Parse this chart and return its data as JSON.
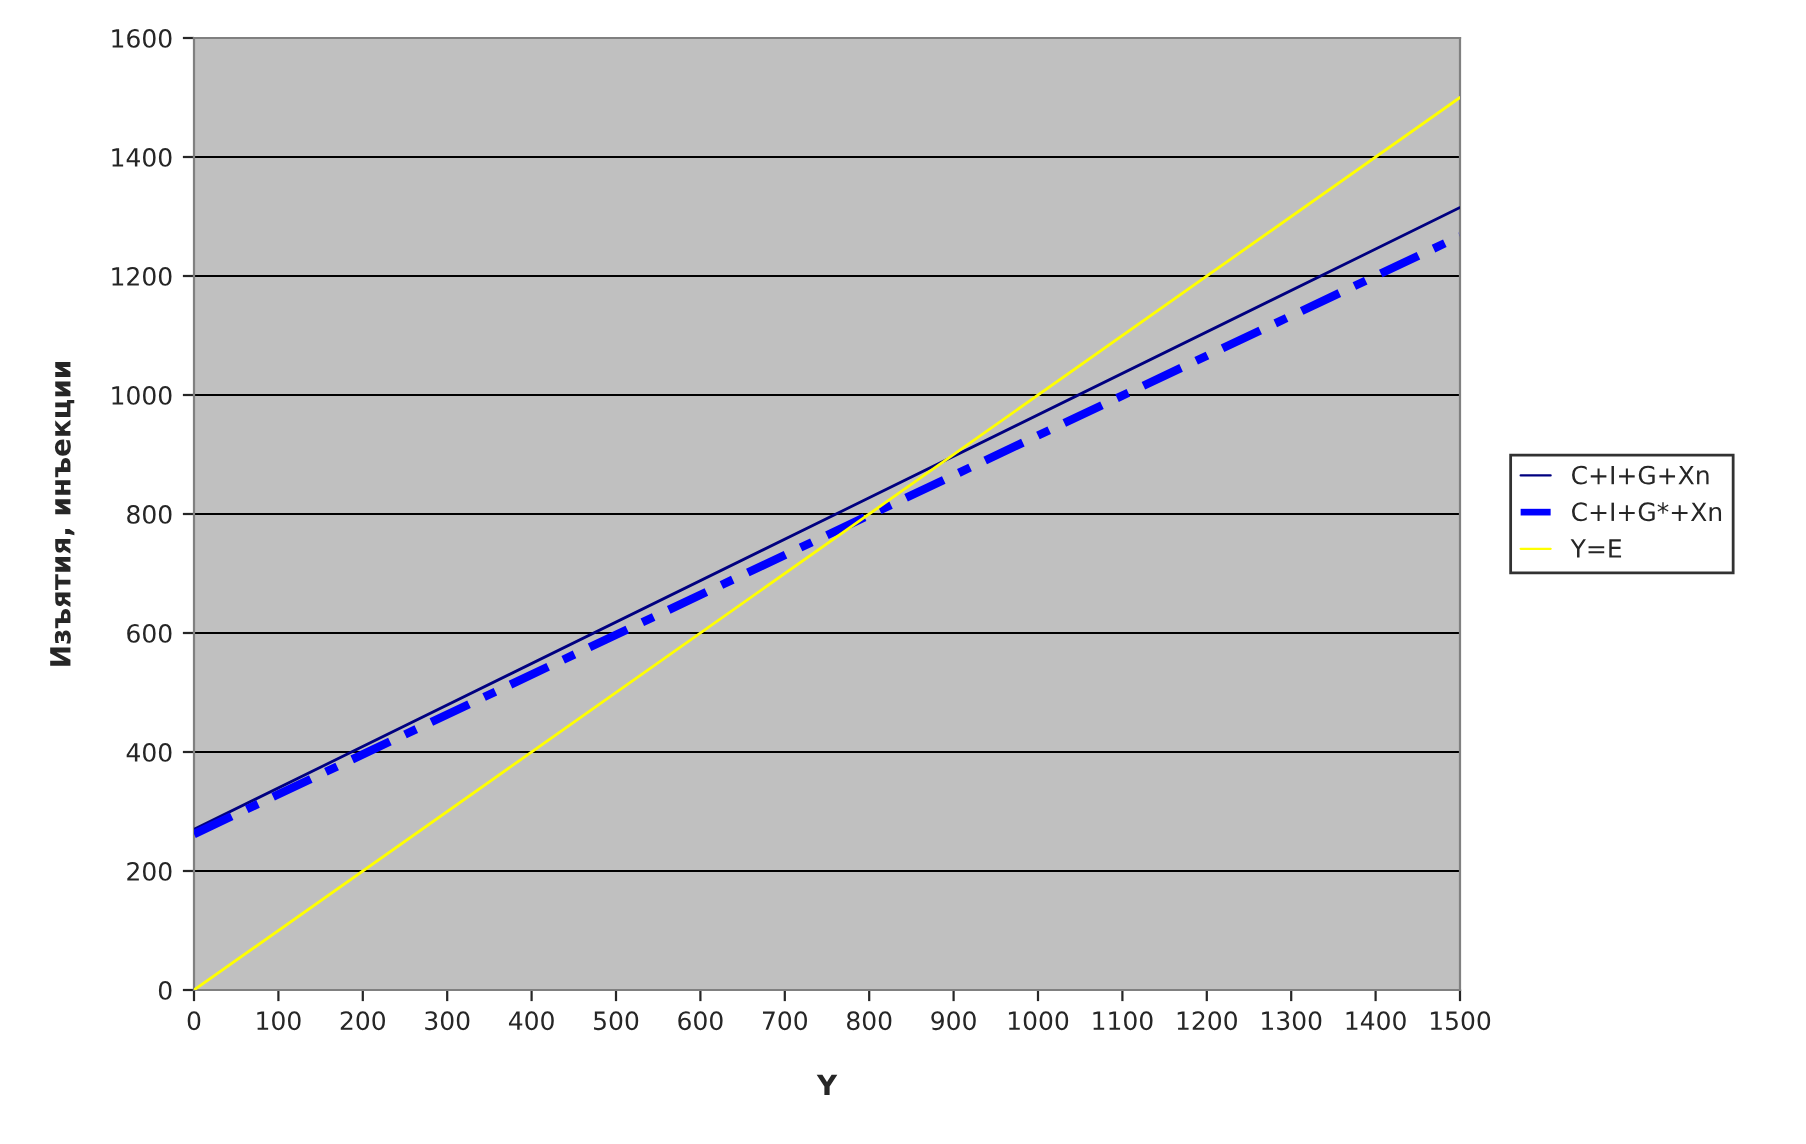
{
  "chart_data": {
    "type": "line",
    "xlabel": "Y",
    "ylabel": "Изъятия, инъекции",
    "x": [
      0,
      1500
    ],
    "series": [
      {
        "name": "C+I+G+Xn",
        "color": "#000080",
        "values": [
          270,
          1315
        ],
        "line_style": "solid"
      },
      {
        "name": "C+I+G*+Xn",
        "color": "#0000ff",
        "values": [
          262,
          1267
        ],
        "line_style": "dashed"
      },
      {
        "name": "Y=E",
        "color": "#ffff00",
        "values": [
          0,
          1500
        ],
        "line_style": "solid"
      }
    ],
    "xlim": [
      0,
      1500
    ],
    "ylim": [
      0,
      1600
    ],
    "xticks": [
      0,
      100,
      200,
      300,
      400,
      500,
      600,
      700,
      800,
      900,
      1000,
      1100,
      1200,
      1300,
      1400,
      1500
    ],
    "yticks": [
      0,
      200,
      400,
      600,
      800,
      1000,
      1200,
      1400,
      1600
    ],
    "grid": "y",
    "legend": "right",
    "marker": "none"
  }
}
